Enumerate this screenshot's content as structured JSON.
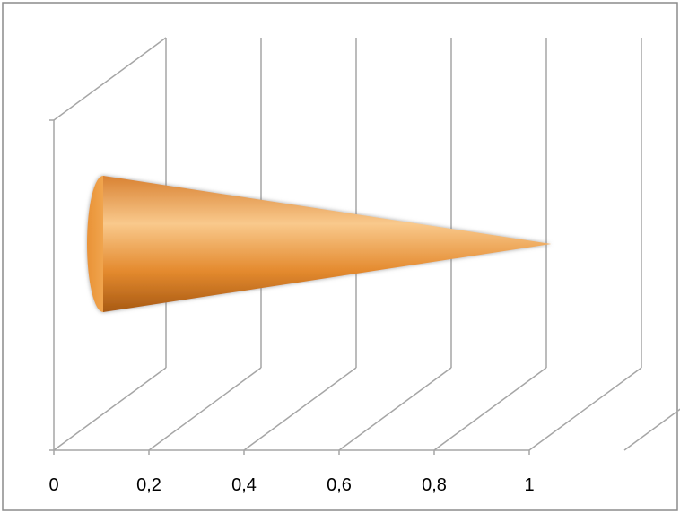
{
  "chart_data": {
    "type": "bar",
    "orientation": "horizontal",
    "style": "3d-cone",
    "categories": [
      ""
    ],
    "series": [
      {
        "values": [
          1.12
        ],
        "color": "#F2A044"
      }
    ],
    "xlim": [
      0,
      1.2
    ],
    "x_ticks": [
      "0",
      "0,2",
      "0,4",
      "0,6",
      "0,8",
      "1"
    ],
    "grid": true,
    "legend": "none",
    "colors": {
      "border": "#8C8C8C",
      "grid": "#A6A6A6",
      "cone_light": "#F9C98C",
      "cone_mid": "#F2A044",
      "cone_dark": "#B35F10"
    }
  }
}
